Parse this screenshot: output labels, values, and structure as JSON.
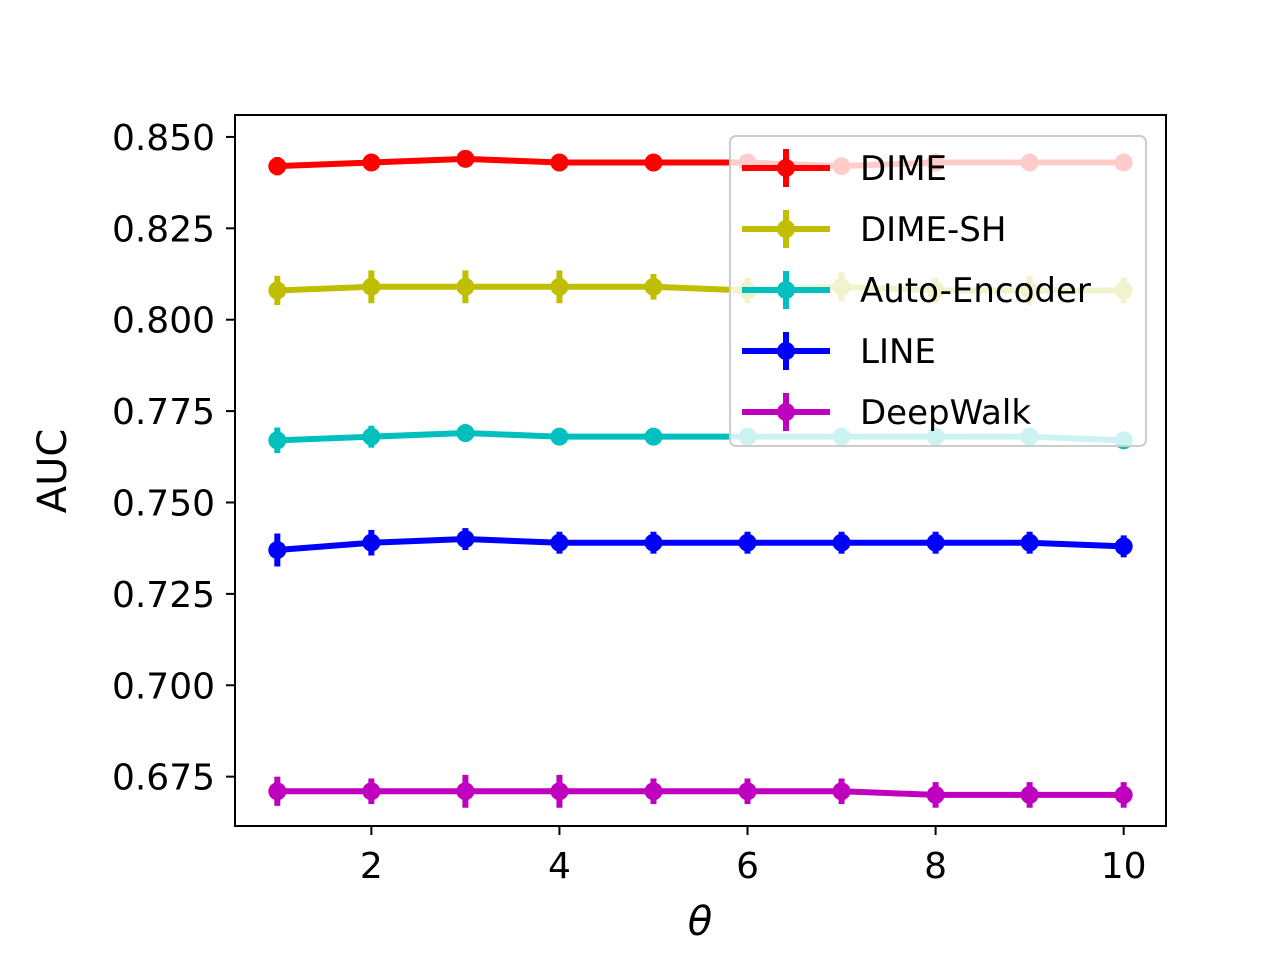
{
  "chart_data": {
    "type": "line",
    "title": "",
    "xlabel": "θ",
    "ylabel": "AUC",
    "x": [
      1,
      2,
      3,
      4,
      5,
      6,
      7,
      8,
      9,
      10
    ],
    "xlim": [
      0.55,
      10.45
    ],
    "ylim": [
      0.6615,
      0.856
    ],
    "xticks": [
      2,
      4,
      6,
      8,
      10
    ],
    "xtick_labels": [
      "2",
      "4",
      "6",
      "8",
      "10"
    ],
    "yticks": [
      0.675,
      0.7,
      0.725,
      0.75,
      0.775,
      0.8,
      0.825,
      0.85
    ],
    "ytick_labels": [
      "0.675",
      "0.700",
      "0.725",
      "0.750",
      "0.775",
      "0.800",
      "0.825",
      "0.850"
    ],
    "grid": false,
    "legend_position": "top-right",
    "series": [
      {
        "name": "DIME",
        "color": "#ff0000",
        "values": [
          0.842,
          0.843,
          0.844,
          0.843,
          0.843,
          0.843,
          0.842,
          0.843,
          0.843,
          0.843
        ],
        "errors": [
          0.0025,
          0.002,
          0.002,
          0.0015,
          0.0015,
          0.0015,
          0.0015,
          0.0015,
          0.0015,
          0.0015
        ]
      },
      {
        "name": "DIME-SH",
        "color": "#bfbf00",
        "values": [
          0.808,
          0.809,
          0.809,
          0.809,
          0.809,
          0.808,
          0.809,
          0.808,
          0.808,
          0.808
        ],
        "errors": [
          0.004,
          0.0045,
          0.0045,
          0.0045,
          0.0035,
          0.0035,
          0.004,
          0.0035,
          0.004,
          0.0035
        ]
      },
      {
        "name": "Auto-Encoder",
        "color": "#00bfbf",
        "values": [
          0.767,
          0.768,
          0.769,
          0.768,
          0.768,
          0.768,
          0.768,
          0.768,
          0.768,
          0.767
        ],
        "errors": [
          0.0035,
          0.003,
          0.002,
          0.002,
          0.002,
          0.002,
          0.002,
          0.002,
          0.002,
          0.002
        ]
      },
      {
        "name": "LINE",
        "color": "#0000ff",
        "values": [
          0.737,
          0.739,
          0.74,
          0.739,
          0.739,
          0.739,
          0.739,
          0.739,
          0.739,
          0.738
        ],
        "errors": [
          0.0045,
          0.0035,
          0.003,
          0.003,
          0.003,
          0.003,
          0.003,
          0.003,
          0.003,
          0.003
        ]
      },
      {
        "name": "DeepWalk",
        "color": "#bf00bf",
        "values": [
          0.671,
          0.671,
          0.671,
          0.671,
          0.671,
          0.671,
          0.671,
          0.67,
          0.67,
          0.67
        ],
        "errors": [
          0.004,
          0.0035,
          0.0045,
          0.0045,
          0.0035,
          0.0035,
          0.0035,
          0.0035,
          0.0035,
          0.0035
        ]
      }
    ]
  }
}
